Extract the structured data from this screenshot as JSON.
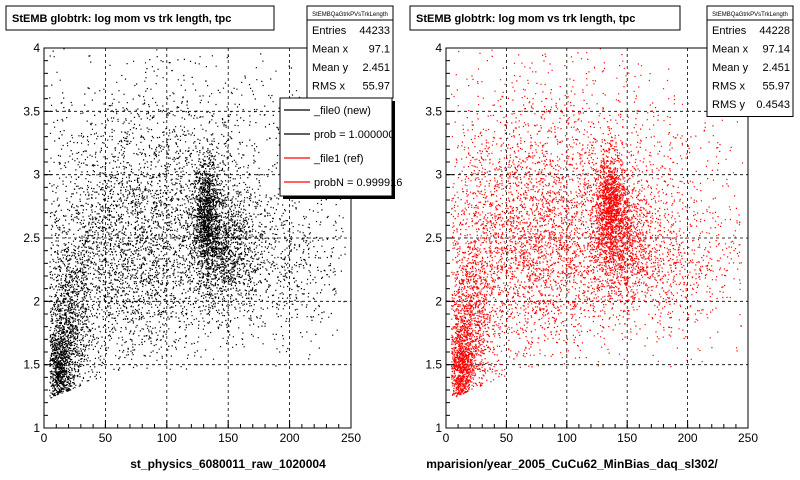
{
  "chart_data": [
    {
      "type": "scatter",
      "title": "StEMB globtrk: log mom vs trk length, tpc",
      "xlabel": "st_physics_6080011_raw_1020004",
      "ylabel": "",
      "xlim": [
        0,
        250
      ],
      "ylim": [
        1,
        4
      ],
      "x_ticks": [
        "0",
        "50",
        "100",
        "150",
        "200",
        "250"
      ],
      "y_ticks": [
        "1",
        "1.5",
        "2",
        "2.5",
        "3",
        "3.5",
        "4"
      ],
      "grid": true,
      "marker_color": "#000000",
      "stats": {
        "name": "StEMBQaGtrkPVsTrkLength",
        "rows": [
          {
            "label": "Entries",
            "value": "44233"
          },
          {
            "label": "Mean x",
            "value": "97.1"
          },
          {
            "label": "Mean y",
            "value": "2.451"
          },
          {
            "label": "RMS x",
            "value": "55.97"
          }
        ]
      },
      "legend": {
        "placement": "top-right",
        "entries": [
          {
            "label": "_file0 (new)",
            "color": "#000000"
          },
          {
            "label": "prob = 1.000000",
            "color": "#000000"
          },
          {
            "label": "_file1 (ref)",
            "color": "#ff0000"
          },
          {
            "label": "probN = 0.999916",
            "color": "#ff0000"
          }
        ]
      },
      "clusters": [
        {
          "x": 132,
          "y": 2.7,
          "sx": 5,
          "sy": 0.22,
          "w": 0.12
        },
        {
          "x": 145,
          "y": 2.45,
          "sx": 12,
          "sy": 0.25,
          "w": 0.1
        },
        {
          "x": 65,
          "y": 2.35,
          "sx": 38,
          "sy": 0.45,
          "w": 0.26
        },
        {
          "x": 12,
          "y": 1.45,
          "sx": 5,
          "sy": 0.22,
          "w": 0.1
        },
        {
          "x": 20,
          "y": 1.8,
          "sx": 10,
          "sy": 0.35,
          "w": 0.12
        },
        {
          "x": 170,
          "y": 2.3,
          "sx": 45,
          "sy": 0.3,
          "w": 0.12
        },
        {
          "x": 110,
          "y": 2.9,
          "sx": 55,
          "sy": 0.45,
          "w": 0.12
        },
        {
          "x": 95,
          "y": 3.2,
          "sx": 70,
          "sy": 0.45,
          "w": 0.06
        }
      ]
    },
    {
      "type": "scatter",
      "title": "StEMB globtrk: log mom vs trk length, tpc",
      "xlabel": "mparision/year_2005_CuCu62_MinBias_daq_sl302/",
      "ylabel": "",
      "xlim": [
        0,
        250
      ],
      "ylim": [
        1,
        4
      ],
      "x_ticks": [
        "0",
        "50",
        "100",
        "150",
        "200",
        "250"
      ],
      "y_ticks": [
        "1",
        "1.5",
        "2",
        "2.5",
        "3",
        "3.5",
        "4"
      ],
      "grid": true,
      "marker_color": "#ff0000",
      "stats": {
        "name": "StEMBQaGtrkPVsTrkLength",
        "rows": [
          {
            "label": "Entries",
            "value": "44228"
          },
          {
            "label": "Mean x",
            "value": "97.14"
          },
          {
            "label": "Mean y",
            "value": "2.451"
          },
          {
            "label": "RMS x",
            "value": "55.97"
          },
          {
            "label": "RMS y",
            "value": "0.4543"
          }
        ]
      },
      "clusters": [
        {
          "x": 135,
          "y": 2.75,
          "sx": 6,
          "sy": 0.22,
          "w": 0.12
        },
        {
          "x": 145,
          "y": 2.5,
          "sx": 12,
          "sy": 0.25,
          "w": 0.1
        },
        {
          "x": 65,
          "y": 2.4,
          "sx": 38,
          "sy": 0.45,
          "w": 0.26
        },
        {
          "x": 12,
          "y": 1.45,
          "sx": 5,
          "sy": 0.22,
          "w": 0.1
        },
        {
          "x": 20,
          "y": 1.8,
          "sx": 10,
          "sy": 0.35,
          "w": 0.12
        },
        {
          "x": 170,
          "y": 2.3,
          "sx": 45,
          "sy": 0.3,
          "w": 0.12
        },
        {
          "x": 110,
          "y": 2.9,
          "sx": 55,
          "sy": 0.45,
          "w": 0.12
        },
        {
          "x": 95,
          "y": 3.2,
          "sx": 70,
          "sy": 0.45,
          "w": 0.06
        }
      ]
    }
  ]
}
